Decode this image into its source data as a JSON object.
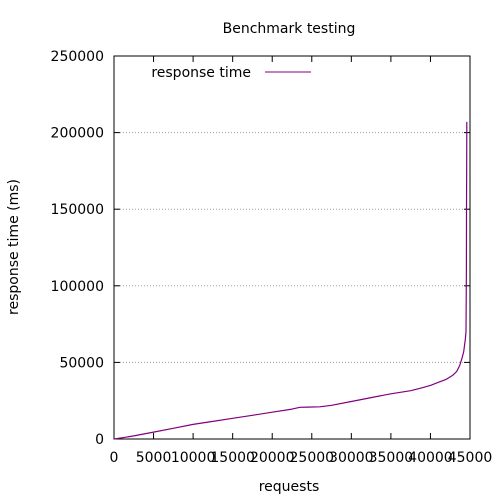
{
  "chart_data": {
    "type": "line",
    "title": "Benchmark testing",
    "xlabel": "requests",
    "ylabel": "response time (ms)",
    "xlim": [
      0,
      45000
    ],
    "ylim": [
      0,
      250000
    ],
    "x_ticks": [
      0,
      5000,
      10000,
      15000,
      20000,
      25000,
      30000,
      35000,
      40000,
      45000
    ],
    "y_ticks": [
      0,
      50000,
      100000,
      150000,
      200000,
      250000
    ],
    "grid": true,
    "legend_position": "top-left",
    "series": [
      {
        "name": "response time",
        "color": "#800080",
        "x": [
          0,
          1000,
          2500,
          5000,
          7500,
          10000,
          12500,
          15000,
          17500,
          20000,
          22500,
          23500,
          24500,
          26000,
          27500,
          30000,
          32500,
          35000,
          37500,
          39000,
          40000,
          41000,
          42000,
          42800,
          43300,
          43700,
          44000,
          44200,
          44400,
          44500,
          44520,
          44540,
          44560,
          44580,
          44600
        ],
        "y": [
          0,
          800,
          2000,
          4500,
          7000,
          9500,
          11500,
          13500,
          15500,
          17500,
          19500,
          20700,
          20800,
          21000,
          22000,
          24500,
          27000,
          29500,
          31500,
          33500,
          35000,
          37000,
          39000,
          41500,
          44000,
          48000,
          53000,
          57000,
          65000,
          70000,
          90000,
          110000,
          150000,
          180000,
          207000
        ]
      }
    ]
  }
}
